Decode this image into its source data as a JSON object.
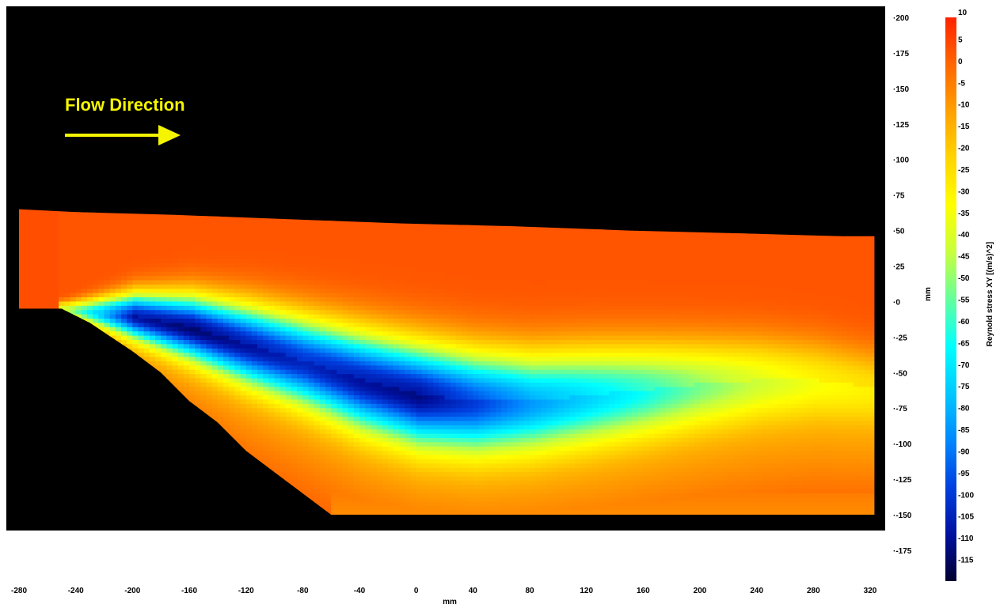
{
  "chart_data": {
    "type": "heatmap",
    "title": "",
    "xlabel": "mm",
    "ylabel": "mm",
    "xlim": [
      -280,
      320
    ],
    "ylim": [
      -175,
      200
    ],
    "x_ticks": [
      -280,
      -240,
      -200,
      -160,
      -120,
      -80,
      -40,
      0,
      40,
      80,
      120,
      160,
      200,
      240,
      280,
      320
    ],
    "y_ticks": [
      200,
      175,
      150,
      125,
      100,
      75,
      50,
      25,
      0,
      -25,
      -50,
      -75,
      -100,
      -125,
      -150,
      -175
    ],
    "colorbar": {
      "label": "Reynold stress XY [(m/s)^2]",
      "min": -120,
      "max": 10,
      "ticks": [
        10,
        5,
        0,
        -5,
        -10,
        -15,
        -20,
        -25,
        -30,
        -35,
        -40,
        -45,
        -50,
        -55,
        -60,
        -65,
        -70,
        -75,
        -80,
        -85,
        -90,
        -95,
        -100,
        -105,
        -110,
        -115
      ],
      "colors": [
        "#ff2200",
        "#ff6600",
        "#ffa000",
        "#ffd400",
        "#ffff00",
        "#c8ff3c",
        "#64ff9c",
        "#00ffff",
        "#00c8ff",
        "#0088ff",
        "#0040e0",
        "#0010a0",
        "#000030"
      ]
    },
    "background_color": "#000000",
    "annotation": {
      "text": "Flow Direction",
      "color": "#f5f500",
      "arrow": "right"
    },
    "field": {
      "description_values": "Reynolds stress XY field; region mostly ~0 (red) with a negative-stress shear layer extending downstream from x=-250, y=-5 to x=220, y=-60; minimum about -110 near x=-170, y=-15 and x=-20, y=-65",
      "upper_boundary": [
        [
          -280,
          65
        ],
        [
          -240,
          63
        ],
        [
          -170,
          61
        ],
        [
          -90,
          58
        ],
        [
          -10,
          55
        ],
        [
          70,
          53
        ],
        [
          150,
          50
        ],
        [
          230,
          48
        ],
        [
          300,
          46
        ],
        [
          323,
          46
        ]
      ],
      "lower_boundary": [
        [
          -280,
          -5
        ],
        [
          -250,
          -5
        ],
        [
          -230,
          -15
        ],
        [
          -200,
          -35
        ],
        [
          -180,
          -50
        ],
        [
          -160,
          -70
        ],
        [
          -140,
          -85
        ],
        [
          -120,
          -105
        ],
        [
          -100,
          -120
        ],
        [
          -80,
          -135
        ],
        [
          -60,
          -150
        ],
        [
          323,
          -150
        ]
      ],
      "core_valley": [
        [
          -250,
          -5
        ],
        [
          -200,
          -10
        ],
        [
          -160,
          -18
        ],
        [
          -120,
          -30
        ],
        [
          -80,
          -42
        ],
        [
          -40,
          -55
        ],
        [
          0,
          -65
        ],
        [
          40,
          -70
        ],
        [
          80,
          -70
        ],
        [
          120,
          -66
        ],
        [
          160,
          -62
        ],
        [
          200,
          -58
        ],
        [
          240,
          -55
        ],
        [
          280,
          -55
        ],
        [
          320,
          -60
        ]
      ],
      "core_min_value": [
        [
          -250,
          -40
        ],
        [
          -200,
          -105
        ],
        [
          -160,
          -110
        ],
        [
          -120,
          -105
        ],
        [
          -80,
          -100
        ],
        [
          -40,
          -105
        ],
        [
          0,
          -108
        ],
        [
          40,
          -95
        ],
        [
          80,
          -80
        ],
        [
          120,
          -70
        ],
        [
          160,
          -60
        ],
        [
          200,
          -48
        ],
        [
          240,
          -38
        ],
        [
          280,
          -30
        ],
        [
          320,
          -25
        ]
      ],
      "core_width_mm": [
        [
          -250,
          6
        ],
        [
          -200,
          20
        ],
        [
          -160,
          28
        ],
        [
          -120,
          34
        ],
        [
          -80,
          38
        ],
        [
          -40,
          42
        ],
        [
          0,
          44
        ],
        [
          40,
          44
        ],
        [
          80,
          43
        ],
        [
          120,
          42
        ],
        [
          160,
          40
        ],
        [
          200,
          38
        ],
        [
          240,
          36
        ],
        [
          280,
          34
        ],
        [
          320,
          32
        ]
      ]
    }
  }
}
